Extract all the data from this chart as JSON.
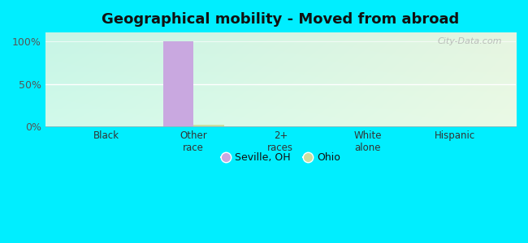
{
  "title": "Geographical mobility - Moved from abroad",
  "categories": [
    "Black",
    "Other\nrace",
    "2+\nraces",
    "White\nalone",
    "Hispanic"
  ],
  "seville_values": [
    0,
    100,
    0,
    0,
    0
  ],
  "ohio_values": [
    0.5,
    2,
    0.5,
    0.5,
    0.5
  ],
  "seville_color": "#c9a8e0",
  "ohio_color": "#ccdea0",
  "background_color": "#00eeff",
  "ylim": [
    0,
    110
  ],
  "yticks": [
    0,
    50,
    100
  ],
  "ytick_labels": [
    "0%",
    "50%",
    "100%"
  ],
  "bar_width": 0.35,
  "title_fontsize": 13,
  "watermark": "City-Data.com",
  "legend_labels": [
    "Seville, OH",
    "Ohio"
  ]
}
